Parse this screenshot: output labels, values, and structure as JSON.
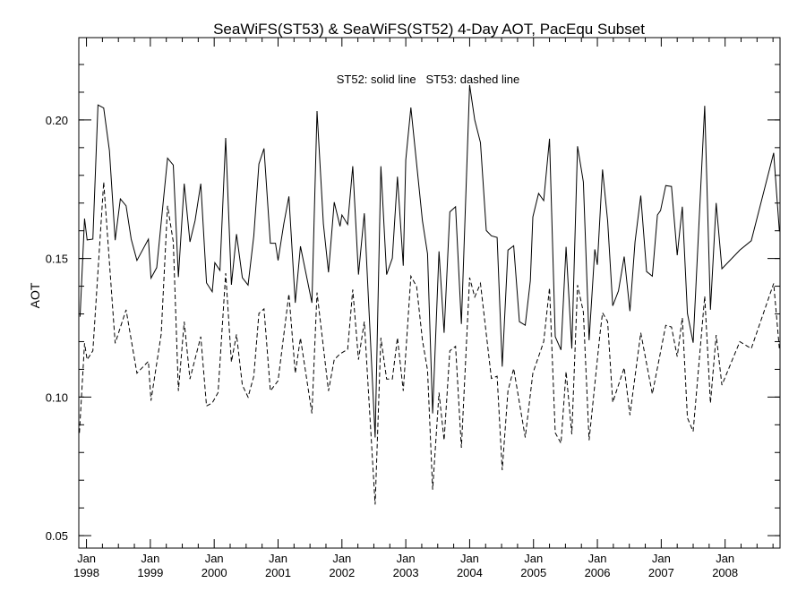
{
  "chart_data": {
    "type": "line",
    "title": "SeaWiFS(ST53) & SeaWiFS(ST52) 4-Day AOT, PacEqu Subset",
    "annotation": "ST52: solid line   ST53: dashed line",
    "xlabel": "",
    "ylabel": "AOT",
    "xlim": [
      1997.88,
      2008.86
    ],
    "ylim": [
      0.0455,
      0.2297
    ],
    "grid": false,
    "yticks": [
      0.05,
      0.1,
      0.15,
      0.2
    ],
    "ytick_labels": [
      "0.05",
      "0.10",
      "0.15",
      "0.20"
    ],
    "xticks": [
      {
        "year": 1998,
        "label1": "Jan",
        "label2": "1998"
      },
      {
        "year": 1999,
        "label1": "Jan",
        "label2": "1999"
      },
      {
        "year": 2000,
        "label1": "Jan",
        "label2": "2000"
      },
      {
        "year": 2001,
        "label1": "Jan",
        "label2": "2001"
      },
      {
        "year": 2002,
        "label1": "Jan",
        "label2": "2002"
      },
      {
        "year": 2003,
        "label1": "Jan",
        "label2": "2003"
      },
      {
        "year": 2004,
        "label1": "Jan",
        "label2": "2004"
      },
      {
        "year": 2005,
        "label1": "Jan",
        "label2": "2005"
      },
      {
        "year": 2006,
        "label1": "Jan",
        "label2": "2006"
      },
      {
        "year": 2007,
        "label1": "Jan",
        "label2": "2007"
      },
      {
        "year": 2008,
        "label1": "Jan",
        "label2": "2008"
      }
    ],
    "series": [
      {
        "name": "ST52",
        "style": "solid",
        "color": "#000000",
        "points": [
          [
            1997.9,
            0.129
          ],
          [
            1997.97,
            0.1644
          ],
          [
            1998.01,
            0.1567
          ],
          [
            1998.1,
            0.157
          ],
          [
            1998.18,
            0.2054
          ],
          [
            1998.27,
            0.2043
          ],
          [
            1998.36,
            0.1889
          ],
          [
            1998.45,
            0.1566
          ],
          [
            1998.53,
            0.1715
          ],
          [
            1998.62,
            0.169
          ],
          [
            1998.7,
            0.157
          ],
          [
            1998.79,
            0.1493
          ],
          [
            1998.97,
            0.157
          ],
          [
            1999.01,
            0.1429
          ],
          [
            1999.1,
            0.1467
          ],
          [
            1999.27,
            0.1862
          ],
          [
            1999.36,
            0.1837
          ],
          [
            1999.44,
            0.1433
          ],
          [
            1999.53,
            0.177
          ],
          [
            1999.62,
            0.156
          ],
          [
            1999.7,
            0.1636
          ],
          [
            1999.79,
            0.177
          ],
          [
            1999.88,
            0.1412
          ],
          [
            1999.97,
            0.138
          ],
          [
            2000.01,
            0.1485
          ],
          [
            2000.09,
            0.1457
          ],
          [
            2000.18,
            0.1935
          ],
          [
            2000.27,
            0.1405
          ],
          [
            2000.35,
            0.1588
          ],
          [
            2000.44,
            0.1431
          ],
          [
            2000.53,
            0.1404
          ],
          [
            2000.62,
            0.1582
          ],
          [
            2000.7,
            0.1841
          ],
          [
            2000.78,
            0.1897
          ],
          [
            2000.88,
            0.1555
          ],
          [
            2000.96,
            0.1555
          ],
          [
            2001.0,
            0.1493
          ],
          [
            2001.09,
            0.1625
          ],
          [
            2001.17,
            0.1724
          ],
          [
            2001.27,
            0.134
          ],
          [
            2001.35,
            0.1544
          ],
          [
            2001.53,
            0.134
          ],
          [
            2001.61,
            0.2032
          ],
          [
            2001.71,
            0.1625
          ],
          [
            2001.79,
            0.145
          ],
          [
            2001.88,
            0.1703
          ],
          [
            2001.97,
            0.1616
          ],
          [
            2002.0,
            0.1657
          ],
          [
            2002.09,
            0.1623
          ],
          [
            2002.17,
            0.1833
          ],
          [
            2002.26,
            0.1442
          ],
          [
            2002.35,
            0.1663
          ],
          [
            2002.52,
            0.0854
          ],
          [
            2002.61,
            0.1833
          ],
          [
            2002.7,
            0.1442
          ],
          [
            2002.79,
            0.1501
          ],
          [
            2002.87,
            0.1795
          ],
          [
            2002.96,
            0.1474
          ],
          [
            2003.0,
            0.1856
          ],
          [
            2003.08,
            0.2045
          ],
          [
            2003.26,
            0.1636
          ],
          [
            2003.34,
            0.1517
          ],
          [
            2003.42,
            0.0941
          ],
          [
            2003.52,
            0.1526
          ],
          [
            2003.6,
            0.1232
          ],
          [
            2003.69,
            0.1668
          ],
          [
            2003.78,
            0.1687
          ],
          [
            2003.87,
            0.1264
          ],
          [
            2004.0,
            0.2126
          ],
          [
            2004.08,
            0.2
          ],
          [
            2004.17,
            0.1918
          ],
          [
            2004.26,
            0.1601
          ],
          [
            2004.34,
            0.1582
          ],
          [
            2004.43,
            0.1576
          ],
          [
            2004.51,
            0.111
          ],
          [
            2004.6,
            0.153
          ],
          [
            2004.69,
            0.1546
          ],
          [
            2004.78,
            0.1272
          ],
          [
            2004.87,
            0.1259
          ],
          [
            2004.95,
            0.142
          ],
          [
            2004.99,
            0.165
          ],
          [
            2005.08,
            0.1735
          ],
          [
            2005.16,
            0.1709
          ],
          [
            2005.25,
            0.1932
          ],
          [
            2005.34,
            0.1218
          ],
          [
            2005.43,
            0.117
          ],
          [
            2005.51,
            0.1542
          ],
          [
            2005.6,
            0.1175
          ],
          [
            2005.69,
            0.1905
          ],
          [
            2005.78,
            0.1776
          ],
          [
            2005.87,
            0.1205
          ],
          [
            2005.96,
            0.1533
          ],
          [
            2006.0,
            0.1477
          ],
          [
            2006.08,
            0.1821
          ],
          [
            2006.16,
            0.1636
          ],
          [
            2006.24,
            0.1329
          ],
          [
            2006.33,
            0.1383
          ],
          [
            2006.42,
            0.1507
          ],
          [
            2006.51,
            0.131
          ],
          [
            2006.59,
            0.156
          ],
          [
            2006.68,
            0.1727
          ],
          [
            2006.77,
            0.1453
          ],
          [
            2006.86,
            0.1436
          ],
          [
            2006.94,
            0.1657
          ],
          [
            2006.99,
            0.1673
          ],
          [
            2007.07,
            0.1763
          ],
          [
            2007.16,
            0.176
          ],
          [
            2007.25,
            0.1512
          ],
          [
            2007.33,
            0.1687
          ],
          [
            2007.41,
            0.1302
          ],
          [
            2007.5,
            0.1196
          ],
          [
            2007.68,
            0.2051
          ],
          [
            2007.77,
            0.1315
          ],
          [
            2007.86,
            0.17
          ],
          [
            2007.95,
            0.1463
          ],
          [
            2008.23,
            0.153
          ],
          [
            2008.41,
            0.1564
          ],
          [
            2008.76,
            0.1881
          ],
          [
            2008.85,
            0.1598
          ]
        ]
      },
      {
        "name": "ST53",
        "style": "dashed",
        "color": "#000000",
        "points": [
          [
            1997.89,
            0.0871
          ],
          [
            1997.97,
            0.1194
          ],
          [
            1998.01,
            0.1135
          ],
          [
            1998.1,
            0.1167
          ],
          [
            1998.27,
            0.1776
          ],
          [
            1998.45,
            0.1194
          ],
          [
            1998.62,
            0.1315
          ],
          [
            1998.79,
            0.1086
          ],
          [
            1998.97,
            0.1129
          ],
          [
            1999.01,
            0.0987
          ],
          [
            1999.17,
            0.1227
          ],
          [
            1999.27,
            0.169
          ],
          [
            1999.36,
            0.156
          ],
          [
            1999.44,
            0.1022
          ],
          [
            1999.53,
            0.1272
          ],
          [
            1999.62,
            0.1065
          ],
          [
            1999.79,
            0.1218
          ],
          [
            1999.88,
            0.0968
          ],
          [
            1999.97,
            0.0979
          ],
          [
            2000.06,
            0.1016
          ],
          [
            2000.18,
            0.1447
          ],
          [
            2000.27,
            0.1127
          ],
          [
            2000.35,
            0.1226
          ],
          [
            2000.44,
            0.1043
          ],
          [
            2000.53,
            0.1
          ],
          [
            2000.62,
            0.1075
          ],
          [
            2000.7,
            0.1302
          ],
          [
            2000.78,
            0.1318
          ],
          [
            2000.88,
            0.1022
          ],
          [
            2001.0,
            0.1059
          ],
          [
            2001.17,
            0.1372
          ],
          [
            2001.27,
            0.1086
          ],
          [
            2001.35,
            0.1213
          ],
          [
            2001.53,
            0.0941
          ],
          [
            2001.61,
            0.1377
          ],
          [
            2001.79,
            0.1022
          ],
          [
            2001.88,
            0.1135
          ],
          [
            2001.97,
            0.1156
          ],
          [
            2002.09,
            0.1172
          ],
          [
            2002.17,
            0.1388
          ],
          [
            2002.26,
            0.1135
          ],
          [
            2002.35,
            0.1272
          ],
          [
            2002.52,
            0.0612
          ],
          [
            2002.61,
            0.1214
          ],
          [
            2002.7,
            0.1065
          ],
          [
            2002.79,
            0.1065
          ],
          [
            2002.87,
            0.1214
          ],
          [
            2002.96,
            0.1022
          ],
          [
            2003.08,
            0.1436
          ],
          [
            2003.17,
            0.1399
          ],
          [
            2003.26,
            0.1205
          ],
          [
            2003.34,
            0.1097
          ],
          [
            2003.42,
            0.0666
          ],
          [
            2003.52,
            0.1016
          ],
          [
            2003.6,
            0.0844
          ],
          [
            2003.69,
            0.1167
          ],
          [
            2003.78,
            0.1183
          ],
          [
            2003.87,
            0.0817
          ],
          [
            2004.0,
            0.1431
          ],
          [
            2004.08,
            0.1361
          ],
          [
            2004.17,
            0.141
          ],
          [
            2004.34,
            0.1067
          ],
          [
            2004.43,
            0.1075
          ],
          [
            2004.51,
            0.0736
          ],
          [
            2004.6,
            0.1022
          ],
          [
            2004.69,
            0.1103
          ],
          [
            2004.87,
            0.0854
          ],
          [
            2004.99,
            0.1086
          ],
          [
            2005.16,
            0.12
          ],
          [
            2005.25,
            0.1394
          ],
          [
            2005.34,
            0.0871
          ],
          [
            2005.43,
            0.0833
          ],
          [
            2005.51,
            0.1092
          ],
          [
            2005.6,
            0.0866
          ],
          [
            2005.69,
            0.1404
          ],
          [
            2005.78,
            0.1307
          ],
          [
            2005.87,
            0.0844
          ],
          [
            2006.04,
            0.1226
          ],
          [
            2006.08,
            0.1304
          ],
          [
            2006.16,
            0.1272
          ],
          [
            2006.24,
            0.0981
          ],
          [
            2006.42,
            0.1106
          ],
          [
            2006.51,
            0.0935
          ],
          [
            2006.68,
            0.1232
          ],
          [
            2006.86,
            0.1011
          ],
          [
            2007.07,
            0.1259
          ],
          [
            2007.16,
            0.1253
          ],
          [
            2007.25,
            0.1146
          ],
          [
            2007.33,
            0.1286
          ],
          [
            2007.41,
            0.0925
          ],
          [
            2007.5,
            0.0876
          ],
          [
            2007.68,
            0.1364
          ],
          [
            2007.77,
            0.0978
          ],
          [
            2007.86,
            0.1224
          ],
          [
            2007.95,
            0.1043
          ],
          [
            2008.23,
            0.12
          ],
          [
            2008.41,
            0.1175
          ],
          [
            2008.76,
            0.141
          ],
          [
            2008.85,
            0.1173
          ]
        ]
      }
    ]
  }
}
